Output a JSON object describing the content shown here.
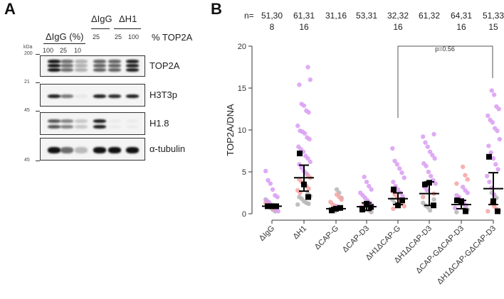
{
  "panelA": {
    "letter": "A",
    "group1_label": "ΔIgG (%)",
    "group2_label": "ΔIgG",
    "group3_label": "ΔH1",
    "kda_label": "kDa",
    "pct_label": "% TOP2A",
    "lane_values": [
      "100",
      "25",
      "10",
      "25",
      "25",
      "100"
    ],
    "blots": [
      {
        "name": "TOP2A",
        "marker": "200",
        "intensities": [
          1.0,
          0.6,
          0.3,
          0.65,
          0.65,
          0.95
        ]
      },
      {
        "name": "H3T3p",
        "marker": "21",
        "intensities": [
          0.95,
          0.55,
          0.05,
          0.95,
          0.9,
          0.95
        ]
      },
      {
        "name": "H1.8",
        "marker": "45",
        "intensities": [
          0.7,
          0.5,
          0.2,
          0.95,
          0.03,
          0.03
        ]
      },
      {
        "name": "α-tubulin",
        "marker": "45",
        "intensities": [
          1.0,
          0.6,
          0.25,
          1.0,
          1.0,
          1.0
        ]
      }
    ]
  },
  "panelB": {
    "letter": "B",
    "n_prefix": "n=",
    "n_labels": [
      [
        "51,30",
        "8"
      ],
      [
        "61,31",
        "16"
      ],
      [
        "31,16",
        ""
      ],
      [
        "53,31",
        ""
      ],
      [
        "32,32",
        "16"
      ],
      [
        "61,32",
        ""
      ],
      [
        "64,31",
        "16"
      ],
      [
        "51,33",
        "15"
      ]
    ],
    "pvalue": "p=0.56"
  },
  "colors": {
    "rep1": "#d99cf2",
    "rep2": "#f4a3a3",
    "rep3": "#b5b5b5",
    "mean": "#000000"
  },
  "chart_data": {
    "type": "scatter",
    "title": "",
    "xlabel": "",
    "ylabel": "TOP2A/DNA",
    "ylim": [
      0,
      20
    ],
    "yticks": [
      0,
      5,
      10,
      15,
      20
    ],
    "grid": false,
    "categories": [
      "ΔIgG",
      "ΔH1",
      "ΔCAP-G",
      "ΔCAP-D3",
      "ΔH1ΔCAP-G",
      "ΔH1ΔCAP-D3",
      "ΔCAP-GΔCAP-D3",
      "ΔH1ΔCAP-GΔCAP-D3"
    ],
    "replicate_means": [
      [
        0.9,
        0.9,
        0.9
      ],
      [
        7.2,
        3.5,
        2.0
      ],
      [
        0.4,
        0.6,
        0.7
      ],
      [
        0.5,
        1.2,
        0.8
      ],
      [
        2.9,
        1.0,
        1.6
      ],
      [
        3.5,
        3.7,
        1.0
      ],
      [
        1.6,
        1.5,
        0.3
      ],
      [
        6.8,
        1.5,
        0.3
      ]
    ],
    "mean": [
      0.9,
      4.3,
      0.6,
      0.85,
      1.8,
      2.4,
      1.1,
      3.0
    ],
    "error_low": [
      0.9,
      2.7,
      0.45,
      0.4,
      1.1,
      1.0,
      0.6,
      1.1
    ],
    "error_high": [
      0.9,
      5.8,
      0.75,
      1.3,
      2.5,
      3.8,
      1.6,
      4.9
    ],
    "points": [
      {
        "rep1": [
          5.1,
          4.0,
          3.6,
          2.9,
          2.2,
          2.0,
          1.6,
          1.4,
          1.1,
          0.8,
          0.5,
          0.3
        ],
        "rep2": [
          1.3,
          1.0,
          0.8,
          0.6
        ],
        "rep3": [
          1.7,
          1.4,
          1.1,
          0.5,
          0.3
        ]
      },
      {
        "rep1": [
          17.5,
          16.0,
          15.4,
          13.1,
          12.9,
          12.3,
          12.1,
          10.5,
          9.9,
          9.8,
          9.6,
          9.1,
          8.9,
          8.0,
          7.7,
          7.4,
          6.9,
          6.6,
          6.2,
          5.9,
          5.5,
          5.1,
          4.8
        ],
        "rep2": [
          4.6,
          4.3,
          4.1,
          3.8,
          3.6,
          3.3,
          3.0,
          2.8,
          2.5
        ],
        "rep3": [
          2.4,
          2.1,
          2.0,
          1.8,
          1.5,
          1.3,
          1.2,
          1.1
        ]
      },
      {
        "rep1": [
          0.9,
          0.7
        ],
        "rep2": [
          2.3,
          2.0,
          1.7,
          1.4,
          1.1,
          0.9,
          0.7
        ],
        "rep3": [
          2.9,
          2.5,
          1.9,
          0.5,
          0.4,
          0.3
        ]
      },
      {
        "rep1": [
          4.4,
          3.8,
          3.3,
          2.9,
          2.5,
          2.2,
          1.9,
          1.6,
          1.3,
          1.0,
          0.8
        ],
        "rep2": [
          1.0,
          0.7,
          0.5
        ],
        "rep3": [
          0.9,
          0.6,
          0.4,
          0.2
        ]
      },
      {
        "rep1": [
          7.8,
          6.3,
          5.9,
          5.4,
          4.9,
          4.3,
          3.8,
          3.3,
          2.9,
          2.5,
          2.1
        ],
        "rep2": [
          2.7,
          2.3,
          1.9,
          1.6,
          1.2,
          0.9,
          0.6
        ],
        "rep3": [
          1.7,
          1.3,
          1.0
        ]
      },
      {
        "rep1": [
          9.5,
          9.2,
          8.5,
          8.0,
          7.4,
          7.0,
          6.6,
          6.0,
          5.7,
          5.0,
          4.5,
          4.0,
          3.6,
          3.2,
          2.8
        ],
        "rep2": [
          2.4,
          2.0
        ],
        "rep3": [
          1.7,
          1.3,
          1.0,
          0.8,
          0.4
        ]
      },
      {
        "rep1": [
          3.2,
          2.8,
          2.5,
          2.2,
          1.9,
          1.6,
          1.3,
          1.0,
          0.7
        ],
        "rep2": [
          5.6,
          4.6,
          4.1,
          3.6,
          2.0,
          1.5
        ],
        "rep3": [
          1.2,
          0.8,
          0.5,
          0.2
        ]
      },
      {
        "rep1": [
          14.7,
          14.2,
          12.8,
          12.5,
          11.7,
          11.2,
          10.9,
          10.2,
          9.9,
          8.9,
          8.1,
          7.3,
          6.6,
          5.9,
          5.3,
          4.5,
          3.8,
          3.1,
          2.3
        ],
        "rep2": [
          1.3,
          0.9,
          0.6,
          0.4,
          0.3
        ],
        "rep3": [
          2.5,
          2.2,
          1.9
        ]
      }
    ]
  }
}
